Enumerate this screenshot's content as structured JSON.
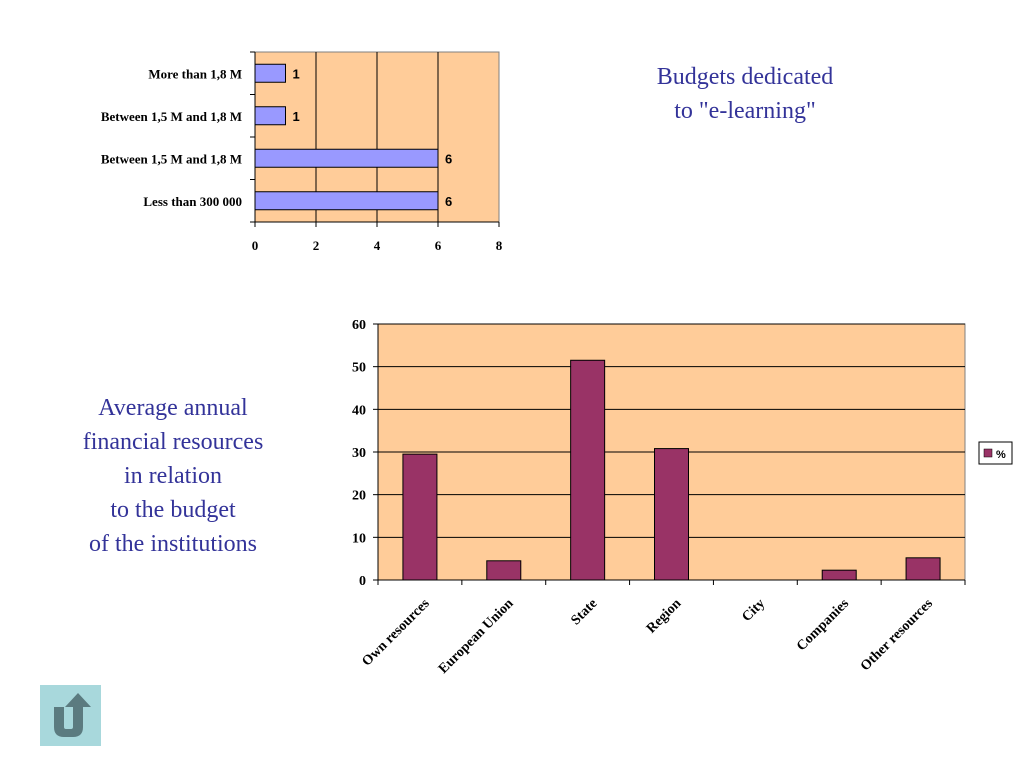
{
  "budget_title": [
    "Budgets dedicated",
    "to \"e-learning\""
  ],
  "resources_title": [
    "Average annual",
    "financial resources",
    "in relation",
    "to the budget",
    "of the institutions"
  ],
  "colors": {
    "title": "#333399",
    "plot_bg": "#ffcc99",
    "bar_budget": "#9999ff",
    "bar_resources": "#993366",
    "back_button": "#a8d8dc",
    "back_icon": "#5b7b80"
  },
  "back_button": {
    "icon": "return-arrow-icon"
  },
  "chart_data": [
    {
      "type": "bar",
      "orientation": "horizontal",
      "categories": [
        "More than 1,8 M",
        "Between 1,5 M and 1,8 M",
        "Between 1,5 M and 1,8 M",
        "Less than 300 000"
      ],
      "values": [
        1,
        1,
        6,
        6
      ],
      "xlim": [
        0,
        8
      ],
      "xticks": [
        0,
        2,
        4,
        6,
        8
      ],
      "grid": true,
      "data_labels": true
    },
    {
      "type": "bar",
      "categories": [
        "Own resources",
        "European Union",
        "State",
        "Region",
        "City",
        "Companies",
        "Other resources"
      ],
      "series": [
        {
          "name": "%",
          "values": [
            29.5,
            4.5,
            51.5,
            30.8,
            0,
            2.3,
            5.2
          ]
        }
      ],
      "ylim": [
        0,
        60
      ],
      "yticks": [
        0,
        10,
        20,
        30,
        40,
        50,
        60
      ],
      "grid": true,
      "legend_position": "right"
    }
  ]
}
